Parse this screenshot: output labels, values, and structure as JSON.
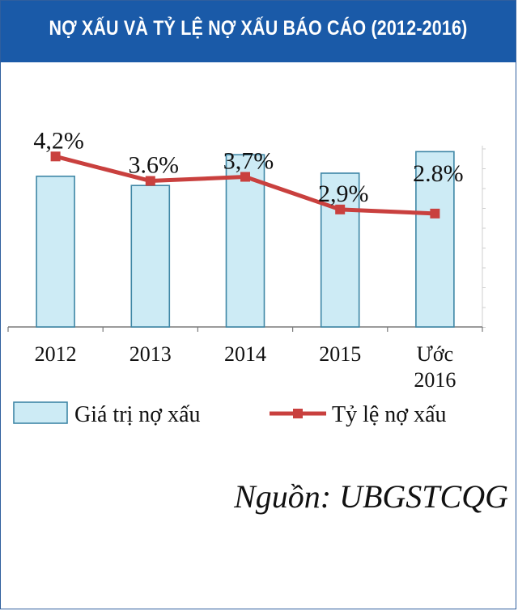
{
  "header": {
    "title": "NỢ XẤU VÀ TỶ LỆ NỢ XẤU BÁO CÁO (2012-2016)"
  },
  "chart_data": {
    "type": "bar+line",
    "categories": [
      "2012",
      "2013",
      "2014",
      "2015",
      "Ước 2016"
    ],
    "series": [
      {
        "name": "Giá trị nợ xấu",
        "type": "bar",
        "values": [
          4.9,
          4.6,
          5.6,
          5.0,
          5.7
        ],
        "color": "#cdebf5"
      },
      {
        "name": "Tỷ lệ nợ xấu",
        "type": "line",
        "values": [
          4.2,
          3.6,
          3.7,
          2.9,
          2.8
        ],
        "labels": [
          "4,2%",
          "3.6%",
          "3,7%",
          "2,9%",
          "2.8%"
        ],
        "color": "#c9403e"
      }
    ],
    "ylim_bar": [
      0,
      8
    ],
    "ylim_line": [
      0,
      5
    ],
    "grid": false,
    "legend": "bottom"
  },
  "source": "Nguồn: UBGSTCQG",
  "colors": {
    "header": "#1a5aa8",
    "bar_fill": "#cdebf5",
    "bar_stroke": "#3f87a6",
    "line": "#c9403e"
  }
}
